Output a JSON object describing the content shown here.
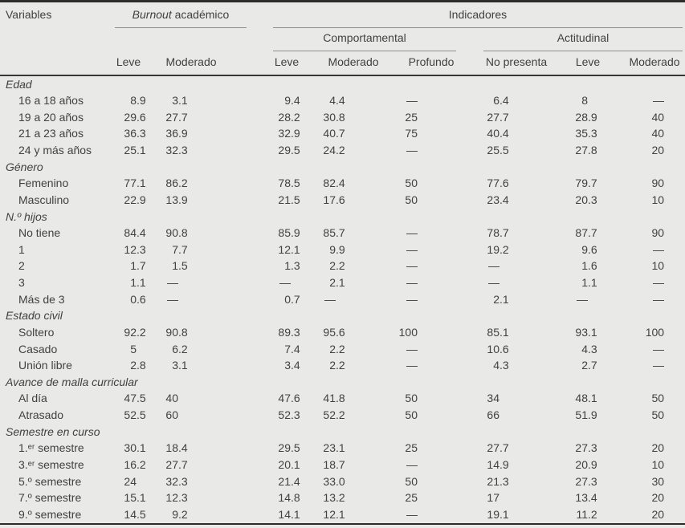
{
  "colors": {
    "background": "#e9e9e7",
    "text": "#414141",
    "rule_light": "#8f8f8f",
    "rule_heavy": "#2c2c2c"
  },
  "header": {
    "variables": "Variables",
    "burnout": {
      "em": "Burnout",
      "rest": " académico"
    },
    "indicadores": "Indicadores",
    "comportamental": "Comportamental",
    "actitudinal": "Actitudinal",
    "columns": [
      "Leve",
      "Moderado",
      "Leve",
      "Moderado",
      "Profundo",
      "No presenta",
      "Leve",
      "Moderado"
    ]
  },
  "sections": [
    {
      "label": "Edad",
      "rows": [
        {
          "label": "16 a 18 años",
          "values": [
            "8.9",
            "3.1",
            "9.4",
            "4.4",
            "—",
            "6.4",
            "8",
            "—"
          ]
        },
        {
          "label": "19 a 20 años",
          "values": [
            "29.6",
            "27.7",
            "28.2",
            "30.8",
            "25",
            "27.7",
            "28.9",
            "40"
          ]
        },
        {
          "label": "21 a 23 años",
          "values": [
            "36.3",
            "36.9",
            "32.9",
            "40.7",
            "75",
            "40.4",
            "35.3",
            "40"
          ]
        },
        {
          "label": "24 y más años",
          "values": [
            "25.1",
            "32.3",
            "29.5",
            "24.2",
            "—",
            "25.5",
            "27.8",
            "20"
          ]
        }
      ]
    },
    {
      "label": "Género",
      "rows": [
        {
          "label": "Femenino",
          "values": [
            "77.1",
            "86.2",
            "78.5",
            "82.4",
            "50",
            "77.6",
            "79.7",
            "90"
          ]
        },
        {
          "label": "Masculino",
          "values": [
            "22.9",
            "13.9",
            "21.5",
            "17.6",
            "50",
            "23.4",
            "20.3",
            "10"
          ]
        }
      ]
    },
    {
      "label": "N.º hijos",
      "rows": [
        {
          "label": "No tiene",
          "values": [
            "84.4",
            "90.8",
            "85.9",
            "85.7",
            "—",
            "78.7",
            "87.7",
            "90"
          ]
        },
        {
          "label": "1",
          "values": [
            "12.3",
            "7.7",
            "12.1",
            "9.9",
            "—",
            "19.2",
            "9.6",
            "—"
          ]
        },
        {
          "label": "2",
          "values": [
            "1.7",
            "1.5",
            "1.3",
            "2.2",
            "—",
            "—",
            "1.6",
            "10"
          ]
        },
        {
          "label": "3",
          "values": [
            "1.1",
            "—",
            "—",
            "2.1",
            "—",
            "—",
            "1.1",
            "—"
          ]
        },
        {
          "label": "Más de 3",
          "values": [
            "0.6",
            "—",
            "0.7",
            "—",
            "—",
            "2.1",
            "—",
            "—"
          ]
        }
      ]
    },
    {
      "label": "Estado civil",
      "rows": [
        {
          "label": "Soltero",
          "values": [
            "92.2",
            "90.8",
            "89.3",
            "95.6",
            "100",
            "85.1",
            "93.1",
            "100"
          ]
        },
        {
          "label": "Casado",
          "values": [
            "5",
            "6.2",
            "7.4",
            "2.2",
            "—",
            "10.6",
            "4.3",
            "—"
          ]
        },
        {
          "label": "Unión libre",
          "values": [
            "2.8",
            "3.1",
            "3.4",
            "2.2",
            "—",
            "4.3",
            "2.7",
            "—"
          ]
        }
      ]
    },
    {
      "label": "Avance de malla curricular",
      "rows": [
        {
          "label": "Al día",
          "values": [
            "47.5",
            "40",
            "47.6",
            "41.8",
            "50",
            "34",
            "48.1",
            "50"
          ]
        },
        {
          "label": "Atrasado",
          "values": [
            "52.5",
            "60",
            "52.3",
            "52.2",
            "50",
            "66",
            "51.9",
            "50"
          ]
        }
      ]
    },
    {
      "label": "Semestre en curso",
      "rows": [
        {
          "label": "1.ᵉʳ semestre",
          "values": [
            "30.1",
            "18.4",
            "29.5",
            "23.1",
            "25",
            "27.7",
            "27.3",
            "20"
          ]
        },
        {
          "label": "3.ᵉʳ semestre",
          "values": [
            "16.2",
            "27.7",
            "20.1",
            "18.7",
            "—",
            "14.9",
            "20.9",
            "10"
          ]
        },
        {
          "label": "5.º semestre",
          "values": [
            "24",
            "32.3",
            "21.4",
            "33.0",
            "50",
            "21.3",
            "27.3",
            "30"
          ]
        },
        {
          "label": "7.º semestre",
          "values": [
            "15.1",
            "12.3",
            "14.8",
            "13.2",
            "25",
            "17",
            "13.4",
            "20"
          ]
        },
        {
          "label": "9.º semestre",
          "values": [
            "14.5",
            "9.2",
            "14.1",
            "12.1",
            "—",
            "19.1",
            "11.2",
            "20"
          ]
        }
      ]
    }
  ]
}
